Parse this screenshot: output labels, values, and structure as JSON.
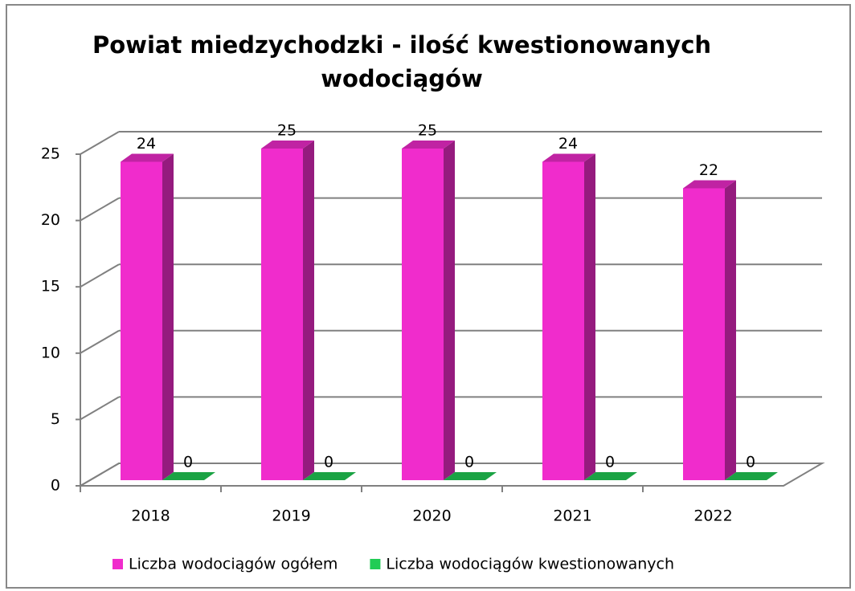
{
  "chart_data": {
    "type": "bar3d",
    "title": "Powiat miedzychodzki - ilość kwestionowanych wodociągów",
    "categories": [
      "2018",
      "2019",
      "2020",
      "2021",
      "2022"
    ],
    "series": [
      {
        "name": "Liczba wodociągów ogółem",
        "color": "#f02ccc",
        "values": [
          24,
          25,
          25,
          24,
          22
        ]
      },
      {
        "name": "Liczba wodociągów kwestionowanych",
        "color": "#22cc55",
        "values": [
          0,
          0,
          0,
          0,
          0
        ]
      }
    ],
    "ylim": [
      0,
      25
    ],
    "yticks": [
      0,
      5,
      10,
      15,
      20,
      25
    ],
    "grid": true,
    "legend": "bottom",
    "data_labels": true
  }
}
